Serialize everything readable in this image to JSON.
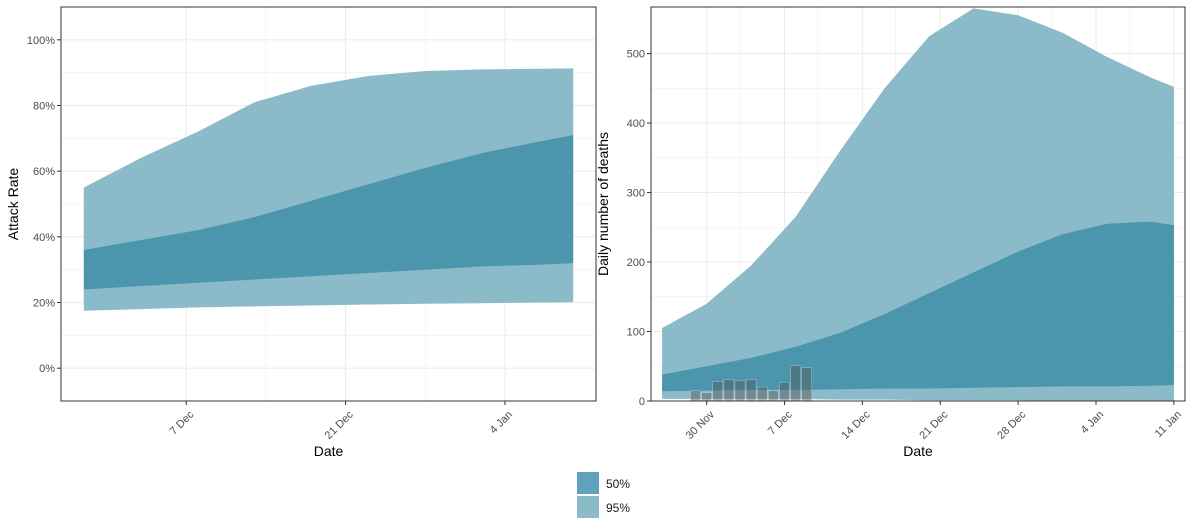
{
  "colors": {
    "band50": "#3f8fa8",
    "band95": "#8bbac8",
    "observed": "#555555",
    "grid": "#ebebeb",
    "frame": "#333333"
  },
  "legend": {
    "items": [
      {
        "label": "50%",
        "color": "#5ea3bb"
      },
      {
        "label": "95%",
        "color": "#8bbac8"
      }
    ]
  },
  "chart_data": [
    {
      "type": "area",
      "xlabel": "Date",
      "ylabel": "Attack Rate",
      "x_unit": "date",
      "xlim": [
        "2020-11-26",
        "2021-01-12"
      ],
      "ylim": [
        -0.1,
        1.1
      ],
      "yticks": [
        0,
        0.2,
        0.4,
        0.6,
        0.8,
        1.0
      ],
      "ytick_labels": [
        "0%",
        "20%",
        "40%",
        "60%",
        "80%",
        "100%"
      ],
      "xticks": [
        "2020-12-07",
        "2020-12-21",
        "2021-01-04"
      ],
      "xtick_labels": [
        "7 Dec",
        "21 Dec",
        "4 Jan"
      ],
      "grid": true,
      "x": [
        "2020-11-28",
        "2020-12-03",
        "2020-12-08",
        "2020-12-13",
        "2020-12-18",
        "2020-12-23",
        "2020-12-28",
        "2021-01-02",
        "2021-01-07",
        "2021-01-10"
      ],
      "series": [
        {
          "name": "95%",
          "lower": [
            0.175,
            0.18,
            0.185,
            0.188,
            0.191,
            0.194,
            0.196,
            0.198,
            0.2,
            0.201
          ],
          "upper": [
            0.55,
            0.64,
            0.72,
            0.81,
            0.86,
            0.89,
            0.905,
            0.91,
            0.912,
            0.913
          ]
        },
        {
          "name": "50%",
          "lower": [
            0.24,
            0.25,
            0.26,
            0.27,
            0.28,
            0.29,
            0.3,
            0.31,
            0.315,
            0.32
          ],
          "upper": [
            0.36,
            0.39,
            0.42,
            0.46,
            0.51,
            0.56,
            0.61,
            0.655,
            0.69,
            0.71
          ]
        }
      ]
    },
    {
      "type": "area",
      "xlabel": "Date",
      "ylabel": "Daily number of deaths",
      "x_unit": "date",
      "xlim": [
        "2020-11-25",
        "2021-01-12"
      ],
      "ylim": [
        0,
        567
      ],
      "yticks": [
        0,
        100,
        200,
        300,
        400,
        500
      ],
      "ytick_labels": [
        "0",
        "100",
        "200",
        "300",
        "400",
        "500"
      ],
      "xticks": [
        "2020-11-30",
        "2020-12-07",
        "2020-12-14",
        "2020-12-21",
        "2020-12-28",
        "2021-01-04",
        "2021-01-11"
      ],
      "xtick_labels": [
        "30 Nov",
        "7 Dec",
        "14 Dec",
        "21 Dec",
        "28 Dec",
        "4 Jan",
        "11 Jan"
      ],
      "grid": true,
      "x": [
        "2020-11-26",
        "2020-11-30",
        "2020-12-04",
        "2020-12-08",
        "2020-12-12",
        "2020-12-16",
        "2020-12-20",
        "2020-12-24",
        "2020-12-28",
        "2021-01-01",
        "2021-01-05",
        "2021-01-09",
        "2021-01-11"
      ],
      "series": [
        {
          "name": "95%",
          "lower": [
            3,
            3,
            3,
            3,
            2,
            2,
            1,
            1,
            1,
            0,
            0,
            0,
            0
          ],
          "upper": [
            105,
            140,
            195,
            265,
            360,
            450,
            525,
            565,
            555,
            530,
            495,
            465,
            452
          ]
        },
        {
          "name": "50%",
          "lower": [
            14,
            15,
            16,
            16,
            17,
            18,
            18,
            19,
            20,
            21,
            21,
            22,
            23
          ],
          "upper": [
            38,
            50,
            62,
            78,
            98,
            125,
            155,
            185,
            215,
            240,
            255,
            258,
            253
          ]
        }
      ],
      "observed": {
        "dates": [
          "2020-11-29",
          "2020-11-30",
          "2020-12-01",
          "2020-12-02",
          "2020-12-03",
          "2020-12-04",
          "2020-12-05",
          "2020-12-06",
          "2020-12-07",
          "2020-12-08",
          "2020-12-09"
        ],
        "values": [
          15,
          12,
          28,
          31,
          29,
          31,
          20,
          15,
          27,
          51,
          48
        ]
      }
    }
  ]
}
